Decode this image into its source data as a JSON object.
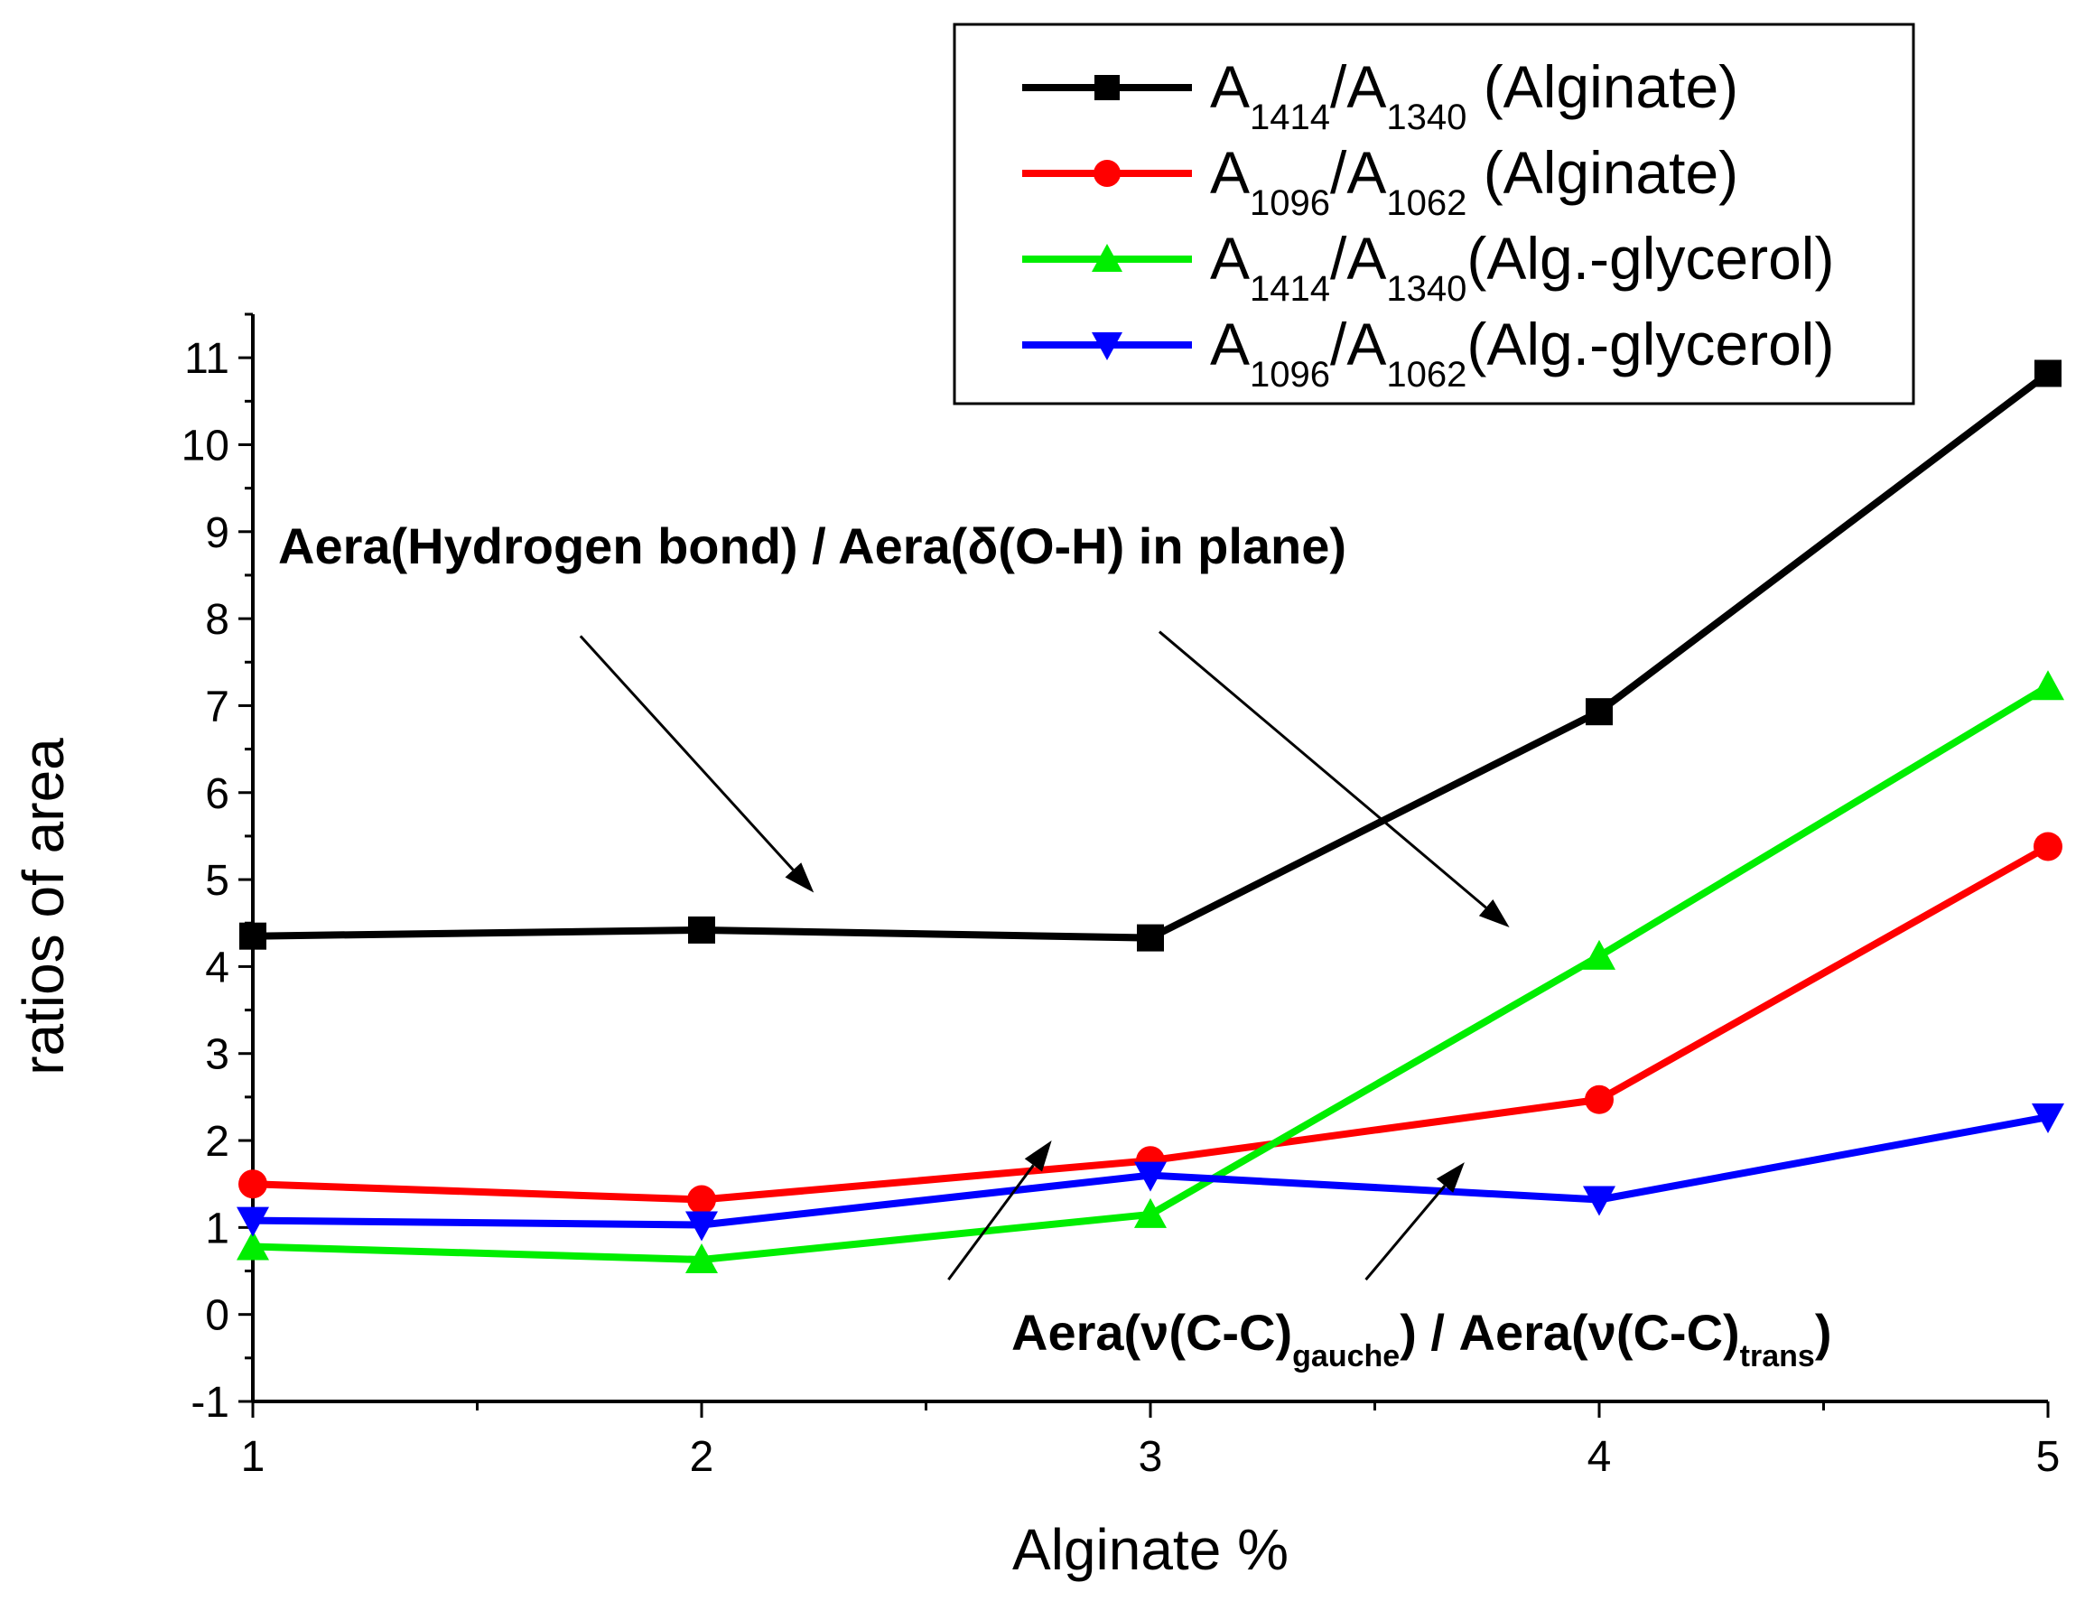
{
  "chart_data": {
    "type": "line",
    "xlabel": "Alginate %",
    "ylabel": "ratios of area",
    "xlim": [
      1,
      5
    ],
    "ylim": [
      -1,
      11.5
    ],
    "x_ticks": [
      1,
      2,
      3,
      4,
      5
    ],
    "y_ticks": [
      -1,
      0,
      1,
      2,
      3,
      4,
      5,
      6,
      7,
      8,
      9,
      10,
      11
    ],
    "x": [
      1,
      2,
      3,
      4,
      5
    ],
    "grid": false,
    "legend_position": "top-right",
    "series": [
      {
        "name": "A1414/A1340 (Alginate)",
        "name_parts": {
          "a": "A",
          "sub1": "1414",
          "b": "/A",
          "sub2": "1340",
          "suffix": " (Alginate)"
        },
        "color": "#000000",
        "marker": "square",
        "values": [
          4.35,
          4.42,
          4.33,
          6.93,
          10.82
        ]
      },
      {
        "name": "A1096/A1062 (Alginate)",
        "name_parts": {
          "a": "A",
          "sub1": "1096",
          "b": "/A",
          "sub2": "1062",
          "suffix": " (Alginate)"
        },
        "color": "#ff0000",
        "marker": "circle",
        "values": [
          1.5,
          1.32,
          1.77,
          2.47,
          5.38
        ]
      },
      {
        "name": "A1414/A1340(Alg.-glycerol)",
        "name_parts": {
          "a": "A",
          "sub1": "1414",
          "b": "/A",
          "sub2": "1340",
          "suffix": "(Alg.-glycerol)"
        },
        "color": "#00ee00",
        "marker": "triangle-up",
        "values": [
          0.78,
          0.63,
          1.15,
          4.12,
          7.22
        ]
      },
      {
        "name": "A1096/A1062(Alg.-glycerol)",
        "name_parts": {
          "a": "A",
          "sub1": "1096",
          "b": "/A",
          "sub2": "1062",
          "suffix": "(Alg.-glycerol)"
        },
        "color": "#0000ff",
        "marker": "triangle-down",
        "values": [
          1.08,
          1.03,
          1.6,
          1.32,
          2.27
        ]
      }
    ],
    "annotations": {
      "hbond_text": "Aera(Hydrogen bond) / Aera(δ(O-H) in plane)",
      "cc_parts": {
        "p1": "Aera(ν(C-C)",
        "sub1": "gauche",
        "p2": ") / Aera(ν(C-C)",
        "sub2": "trans",
        "p3": ")"
      },
      "arrows": [
        {
          "from": [
            1.73,
            7.8
          ],
          "to": [
            2.25,
            4.85
          ]
        },
        {
          "from": [
            3.02,
            7.85
          ],
          "to": [
            3.8,
            4.45
          ]
        },
        {
          "from": [
            2.55,
            0.4
          ],
          "to": [
            2.78,
            2.0
          ]
        },
        {
          "from": [
            3.48,
            0.4
          ],
          "to": [
            3.7,
            1.75
          ]
        }
      ]
    }
  }
}
